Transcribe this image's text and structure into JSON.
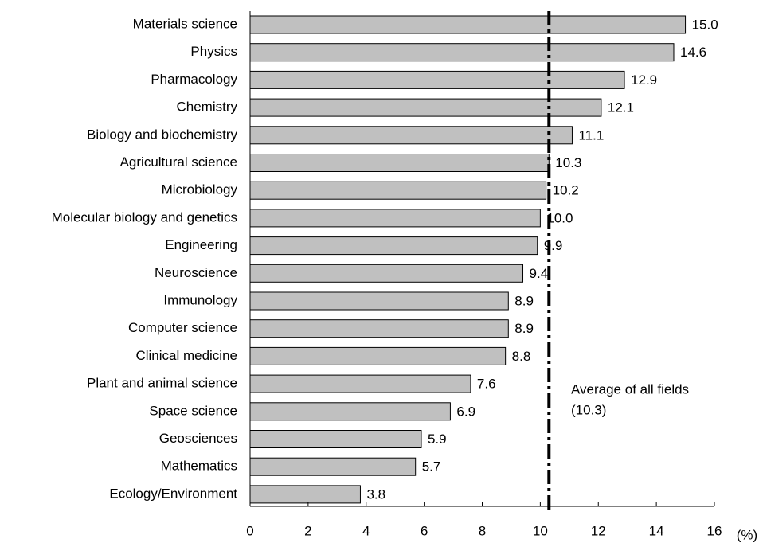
{
  "chart_data": {
    "type": "barh",
    "categories": [
      "Materials science",
      "Physics",
      "Pharmacology",
      "Chemistry",
      "Biology and biochemistry",
      "Agricultural science",
      "Microbiology",
      "Molecular biology and genetics",
      "Engineering",
      "Neuroscience",
      "Immunology",
      "Computer science",
      "Clinical medicine",
      "Plant and animal science",
      "Space science",
      "Geosciences",
      "Mathematics",
      "Ecology/Environment"
    ],
    "values": [
      15.0,
      14.6,
      12.9,
      12.1,
      11.1,
      10.3,
      10.2,
      10.0,
      9.9,
      9.4,
      8.9,
      8.9,
      8.8,
      7.6,
      6.9,
      5.9,
      5.7,
      3.8
    ],
    "value_labels": [
      "15.0",
      "14.6",
      "12.9",
      "12.1",
      "11.1",
      "10.3",
      "10.2",
      "10.0",
      "9.9",
      "9.4",
      "8.9",
      "8.9",
      "8.8",
      "7.6",
      "6.9",
      "5.9",
      "5.7",
      "3.8"
    ],
    "color": "#c0c0c0",
    "xlim": [
      0,
      16
    ],
    "xticks": [
      0,
      2,
      4,
      6,
      8,
      10,
      12,
      14,
      16
    ],
    "xlabel": "(%)",
    "reference_line": {
      "value": 10.3,
      "label": "Average of all fields",
      "value_label": "(10.3)"
    }
  }
}
